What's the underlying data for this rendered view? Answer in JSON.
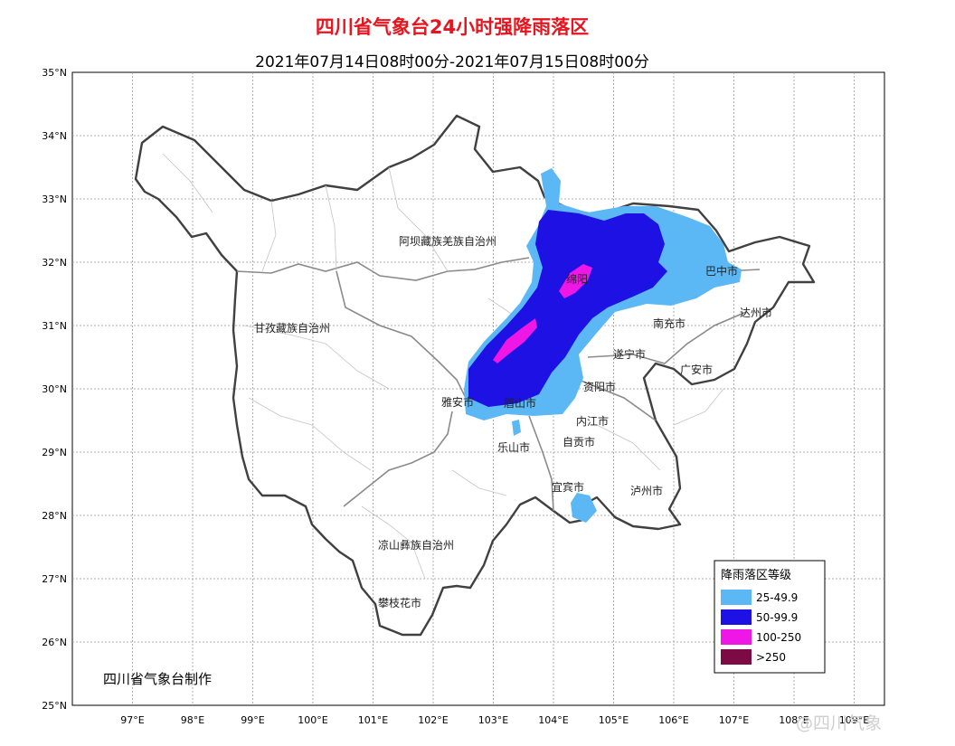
{
  "header": {
    "title": "四川省气象台24小时强降雨落区",
    "subtitle": "2021年07月14日08时00分-2021年07月15日08时00分"
  },
  "map": {
    "lon_ticks": [
      "97°E",
      "98°E",
      "99°E",
      "100°E",
      "101°E",
      "102°E",
      "103°E",
      "104°E",
      "105°E",
      "106°E",
      "107°E",
      "108°E",
      "109°E"
    ],
    "lat_ticks": [
      "35°N",
      "34°N",
      "33°N",
      "32°N",
      "31°N",
      "30°N",
      "29°N",
      "28°N",
      "27°N",
      "26°N",
      "25°N"
    ],
    "regions": [
      {
        "name": "阿坝藏族羌族自治州"
      },
      {
        "name": "甘孜藏族自治州"
      },
      {
        "name": "凉山彝族自治州"
      }
    ],
    "cities": [
      {
        "name": "绵阳"
      },
      {
        "name": "巴中市"
      },
      {
        "name": "达州市"
      },
      {
        "name": "南充市"
      },
      {
        "name": "遂宁市"
      },
      {
        "name": "广安市"
      },
      {
        "name": "资阳市"
      },
      {
        "name": "雅安市"
      },
      {
        "name": "眉山市"
      },
      {
        "name": "乐山市"
      },
      {
        "name": "内江市"
      },
      {
        "name": "自贡市"
      },
      {
        "name": "宜宾市"
      },
      {
        "name": "泸州市"
      },
      {
        "name": "攀枝花市"
      }
    ]
  },
  "legend": {
    "title": "降雨落区等级",
    "items": [
      {
        "label": "25-49.9",
        "color": "#5cb8f5"
      },
      {
        "label": "50-99.9",
        "color": "#1d11e4"
      },
      {
        "label": "100-250",
        "color": "#ee17e6"
      },
      {
        "label": ">250",
        "color": "#7b0a45"
      }
    ]
  },
  "footer": {
    "credit": "四川省气象台制作",
    "watermark": "@四川气象"
  }
}
